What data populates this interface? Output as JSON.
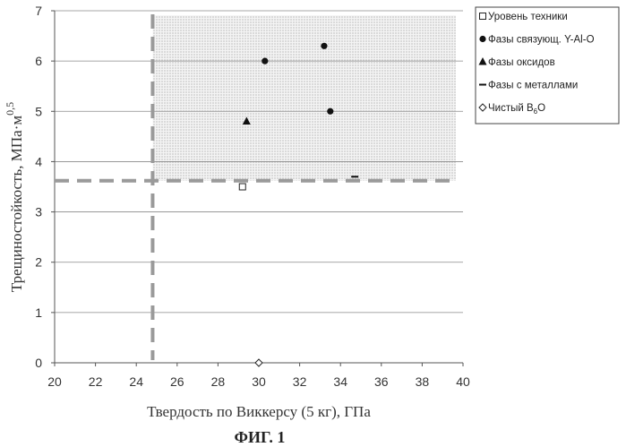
{
  "chart_data": {
    "type": "scatter",
    "xlabel": "Твердость по Виккерсу (5 кг), ГПа",
    "ylabel": "Трещиностойкость, МПа·м",
    "ylabel_sup": "0,5",
    "caption": "ФИГ. 1",
    "xlim": [
      20,
      40
    ],
    "ylim": [
      0,
      7
    ],
    "x_ticks": [
      "20",
      "22",
      "24",
      "26",
      "28",
      "30",
      "32",
      "34",
      "36",
      "38",
      "40"
    ],
    "y_ticks": [
      "0",
      "1",
      "2",
      "3",
      "4",
      "5",
      "6",
      "7"
    ],
    "grid": "horizontal",
    "legend_position": "right",
    "thresholds": {
      "x": 24.8,
      "y": 3.62
    },
    "series": [
      {
        "name": "Уровень техники",
        "marker": "square-open",
        "points": [
          [
            29.2,
            3.5
          ]
        ]
      },
      {
        "name": "Фазы связующ. Y-Al-O",
        "marker": "circle",
        "points": [
          [
            30.3,
            6.0
          ],
          [
            33.2,
            6.3
          ],
          [
            33.5,
            5.0
          ]
        ]
      },
      {
        "name": "Фазы оксидов",
        "marker": "triangle",
        "points": [
          [
            29.4,
            4.8
          ]
        ]
      },
      {
        "name": "Фазы с металлами",
        "marker": "dash",
        "points": [
          [
            34.7,
            3.7
          ]
        ]
      },
      {
        "name": "Чистый B6O",
        "name_main": "Чистый B",
        "name_sub": "6",
        "name_tail": "O",
        "marker": "diamond-open",
        "points": [
          [
            30.0,
            0.0
          ]
        ]
      }
    ]
  }
}
